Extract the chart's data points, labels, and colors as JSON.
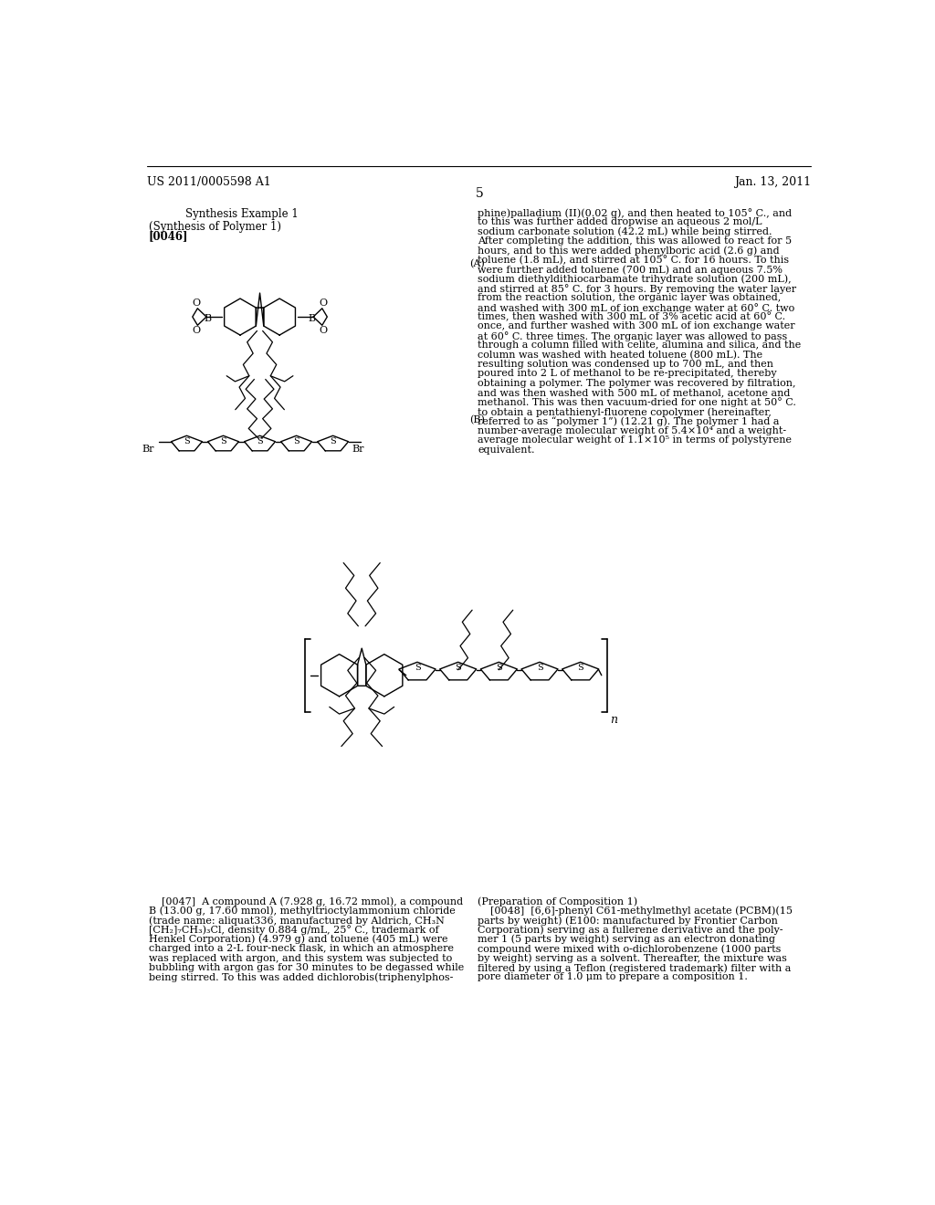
{
  "bg_color": "#ffffff",
  "page_width": 10.24,
  "page_height": 13.2,
  "header_left": "US 2011/0005598 A1",
  "header_right": "Jan. 13, 2011",
  "page_number": "5",
  "synthesis_title": "Synthesis Example 1",
  "synthesis_subtitle": "(Synthesis of Polymer 1)",
  "synthesis_ref": "[0046]",
  "label_A": "(A)",
  "label_B": "(B)",
  "right_text_lines": [
    "phine)palladium (II)(0.02 g), and then heated to 105° C., and",
    "to this was further added dropwise an aqueous 2 mol/L",
    "sodium carbonate solution (42.2 mL) while being stirred.",
    "After completing the addition, this was allowed to react for 5",
    "hours, and to this were added phenylboric acid (2.6 g) and",
    "toluene (1.8 mL), and stirred at 105° C. for 16 hours. To this",
    "were further added toluene (700 mL) and an aqueous 7.5%",
    "sodium diethyldithiocarbamate trihydrate solution (200 mL),",
    "and stirred at 85° C. for 3 hours. By removing the water layer",
    "from the reaction solution, the organic layer was obtained,",
    "and washed with 300 mL of ion exchange water at 60° C. two",
    "times, then washed with 300 mL of 3% acetic acid at 60° C.",
    "once, and further washed with 300 mL of ion exchange water",
    "at 60° C. three times. The organic layer was allowed to pass",
    "through a column filled with celite, alumina and silica, and the",
    "column was washed with heated toluene (800 mL). The",
    "resulting solution was condensed up to 700 mL, and then",
    "poured into 2 L of methanol to be re-precipitated, thereby",
    "obtaining a polymer. The polymer was recovered by filtration,",
    "and was then washed with 500 mL of methanol, acetone and",
    "methanol. This was then vacuum-dried for one night at 50° C.",
    "to obtain a pentathienyl-fluorene copolymer (hereinafter,",
    "referred to as “polymer 1”) (12.21 g). The polymer 1 had a",
    "number-average molecular weight of 5.4×10⁴ and a weight-",
    "average molecular weight of 1.1×10⁵ in terms of polystyrene",
    "equivalent."
  ],
  "bottom_left_lines": [
    "    [0047]  A compound A (7.928 g, 16.72 mmol), a compound",
    "B (13.00 g, 17.60 mmol), methyltrioctylammonium chloride",
    "(trade name: aliquat336, manufactured by Aldrich, CH₃N",
    "[CH₂]₇CH₃)₃Cl, density 0.884 g/mL, 25° C., trademark of",
    "Henkel Corporation) (4.979 g) and toluene (405 mL) were",
    "charged into a 2-L four-neck flask, in which an atmosphere",
    "was replaced with argon, and this system was subjected to",
    "bubbling with argon gas for 30 minutes to be degassed while",
    "being stirred. To this was added dichlorobis(triphenylphos-"
  ],
  "bottom_right_lines": [
    "(Preparation of Composition 1)",
    "    [0048]  [6,6]-phenyl C61-methylmethyl acetate (PCBM)(15",
    "parts by weight) (E100: manufactured by Frontier Carbon",
    "Corporation) serving as a fullerene derivative and the poly-",
    "mer 1 (5 parts by weight) serving as an electron donating",
    "compound were mixed with o-dichlorobenzene (1000 parts",
    "by weight) serving as a solvent. Thereafter, the mixture was",
    "filtered by using a Teflon (registered trademark) filter with a",
    "pore diameter of 1.0 μm to prepare a composition 1."
  ]
}
